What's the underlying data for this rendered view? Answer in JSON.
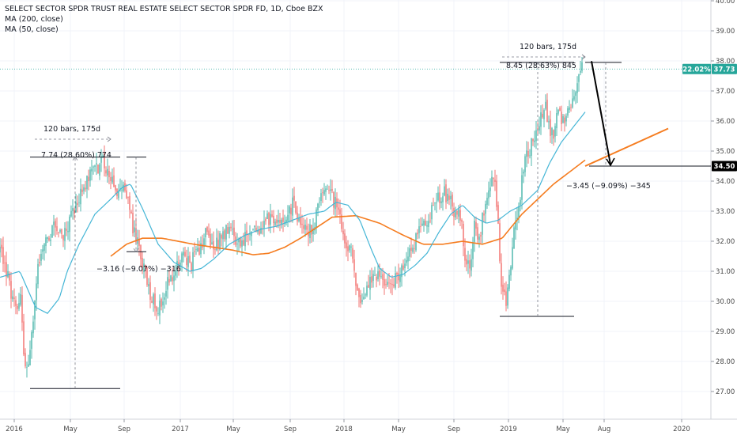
{
  "legend": {
    "title": "SELECT SECTOR SPDR TRUST REAL ESTATE SELECT SECTOR SPDR FD, 1D, Cboe BZX",
    "ma200": "MA (200, close)",
    "ma50": "MA (50, close)"
  },
  "colors": {
    "up": "#26a69a",
    "down": "#ef5350",
    "ma200": "#f57c1f",
    "ma50": "#45b6d6",
    "price_tag": "#26a69a",
    "target_tag": "#000000"
  },
  "price_tag": {
    "pct": "22.02%",
    "price": "37.73"
  },
  "target_tag": {
    "price": "34.50"
  },
  "chart_data": {
    "type": "candlestick",
    "ylim": [
      26.5,
      40.3
    ],
    "y_ticks": [
      "27.00",
      "28.00",
      "29.00",
      "30.00",
      "31.00",
      "32.00",
      "33.00",
      "34.00",
      "35.00",
      "36.00",
      "37.00",
      "38.00",
      "39.00",
      "40.00"
    ],
    "x_ticks": [
      "2016",
      "May",
      "Sep",
      "2017",
      "May",
      "Sep",
      "2018",
      "May",
      "Sep",
      "2019",
      "May",
      "Aug",
      "2020"
    ],
    "price_anchors": [
      [
        0,
        31.7
      ],
      [
        6,
        31.3
      ],
      [
        12,
        30.5
      ],
      [
        22,
        29.5
      ],
      [
        26,
        30.2
      ],
      [
        30,
        28.2
      ],
      [
        35,
        27.4
      ],
      [
        42,
        29.5
      ],
      [
        50,
        31.5
      ],
      [
        60,
        32.1
      ],
      [
        70,
        32.5
      ],
      [
        80,
        32.2
      ],
      [
        90,
        32.8
      ],
      [
        100,
        33.5
      ],
      [
        110,
        34.0
      ],
      [
        120,
        34.4
      ],
      [
        130,
        34.7
      ],
      [
        140,
        34.2
      ],
      [
        150,
        33.5
      ],
      [
        158,
        33.9
      ],
      [
        163,
        33.1
      ],
      [
        170,
        32.3
      ],
      [
        180,
        31.2
      ],
      [
        190,
        30.3
      ],
      [
        200,
        29.8
      ],
      [
        210,
        30.5
      ],
      [
        220,
        30.8
      ],
      [
        230,
        31.5
      ],
      [
        240,
        31.2
      ],
      [
        250,
        31.6
      ],
      [
        260,
        32.3
      ],
      [
        270,
        31.8
      ],
      [
        280,
        32.1
      ],
      [
        290,
        32.4
      ],
      [
        300,
        31.9
      ],
      [
        310,
        32.2
      ],
      [
        320,
        32.5
      ],
      [
        330,
        32.3
      ],
      [
        340,
        32.8
      ],
      [
        350,
        32.5
      ],
      [
        360,
        32.9
      ],
      [
        370,
        33.2
      ],
      [
        380,
        32.6
      ],
      [
        390,
        32.4
      ],
      [
        395,
        32.2
      ],
      [
        405,
        33.6
      ],
      [
        412,
        33.8
      ],
      [
        420,
        33.4
      ],
      [
        430,
        33.1
      ],
      [
        435,
        32.0
      ],
      [
        440,
        31.5
      ],
      [
        445,
        31.8
      ],
      [
        450,
        30.6
      ],
      [
        455,
        29.8
      ],
      [
        460,
        29.9
      ],
      [
        465,
        30.5
      ],
      [
        470,
        30.7
      ],
      [
        480,
        30.9
      ],
      [
        490,
        30.4
      ],
      [
        500,
        30.8
      ],
      [
        510,
        31.1
      ],
      [
        520,
        31.6
      ],
      [
        530,
        32.4
      ],
      [
        540,
        32.6
      ],
      [
        550,
        33.4
      ],
      [
        560,
        33.6
      ],
      [
        570,
        33.5
      ],
      [
        575,
        32.9
      ],
      [
        580,
        32.8
      ],
      [
        585,
        32.3
      ],
      [
        590,
        31.1
      ],
      [
        595,
        31.4
      ],
      [
        600,
        32.5
      ],
      [
        605,
        31.9
      ],
      [
        610,
        32.7
      ],
      [
        615,
        33.6
      ],
      [
        620,
        33.9
      ],
      [
        625,
        34.1
      ],
      [
        630,
        32.4
      ],
      [
        635,
        30.3
      ],
      [
        640,
        29.9
      ],
      [
        645,
        31.2
      ],
      [
        650,
        32.3
      ],
      [
        655,
        32.9
      ],
      [
        660,
        34.1
      ],
      [
        665,
        34.8
      ],
      [
        670,
        35.0
      ],
      [
        675,
        35.4
      ],
      [
        680,
        35.9
      ],
      [
        685,
        36.1
      ],
      [
        690,
        36.4
      ],
      [
        695,
        35.8
      ],
      [
        700,
        35.5
      ],
      [
        705,
        36.2
      ],
      [
        710,
        36.0
      ],
      [
        715,
        36.1
      ],
      [
        720,
        36.5
      ],
      [
        725,
        36.8
      ],
      [
        730,
        37.4
      ],
      [
        736,
        37.73
      ]
    ],
    "ma200_anchors": [
      [
        140,
        31.5
      ],
      [
        160,
        31.9
      ],
      [
        180,
        32.1
      ],
      [
        205,
        32.1
      ],
      [
        225,
        32.0
      ],
      [
        245,
        31.9
      ],
      [
        270,
        31.8
      ],
      [
        295,
        31.7
      ],
      [
        320,
        31.55
      ],
      [
        340,
        31.6
      ],
      [
        360,
        31.8
      ],
      [
        380,
        32.1
      ],
      [
        400,
        32.45
      ],
      [
        420,
        32.8
      ],
      [
        450,
        32.85
      ],
      [
        480,
        32.6
      ],
      [
        510,
        32.2
      ],
      [
        535,
        31.9
      ],
      [
        560,
        31.9
      ],
      [
        585,
        32.0
      ],
      [
        610,
        31.9
      ],
      [
        635,
        32.1
      ],
      [
        660,
        32.9
      ],
      [
        680,
        33.4
      ],
      [
        700,
        33.9
      ],
      [
        715,
        34.2
      ],
      [
        740,
        34.7
      ],
      [
        765,
        34.9
      ]
    ],
    "ma50_anchors": [
      [
        0,
        30.8
      ],
      [
        25,
        31.0
      ],
      [
        45,
        29.8
      ],
      [
        60,
        29.6
      ],
      [
        75,
        30.1
      ],
      [
        85,
        31.0
      ],
      [
        100,
        31.9
      ],
      [
        120,
        32.9
      ],
      [
        140,
        33.4
      ],
      [
        155,
        33.8
      ],
      [
        165,
        33.9
      ],
      [
        180,
        33.1
      ],
      [
        200,
        31.9
      ],
      [
        220,
        31.3
      ],
      [
        240,
        31.0
      ],
      [
        255,
        31.1
      ],
      [
        270,
        31.4
      ],
      [
        290,
        31.9
      ],
      [
        310,
        32.2
      ],
      [
        330,
        32.4
      ],
      [
        350,
        32.5
      ],
      [
        370,
        32.7
      ],
      [
        390,
        32.9
      ],
      [
        410,
        33.0
      ],
      [
        425,
        33.3
      ],
      [
        440,
        33.2
      ],
      [
        455,
        32.7
      ],
      [
        470,
        31.7
      ],
      [
        480,
        31.1
      ],
      [
        495,
        30.8
      ],
      [
        510,
        30.9
      ],
      [
        525,
        31.2
      ],
      [
        540,
        31.6
      ],
      [
        555,
        32.3
      ],
      [
        570,
        32.9
      ],
      [
        585,
        33.2
      ],
      [
        600,
        32.8
      ],
      [
        615,
        32.6
      ],
      [
        630,
        32.7
      ],
      [
        645,
        33.0
      ],
      [
        660,
        33.2
      ],
      [
        680,
        33.7
      ],
      [
        695,
        34.6
      ],
      [
        710,
        35.3
      ],
      [
        725,
        35.8
      ],
      [
        740,
        36.3
      ]
    ],
    "projection_line": {
      "from": [
        740,
        34.5
      ],
      "to": [
        845,
        35.75
      ]
    },
    "measures": [
      {
        "label_bars": "120 bars, 175d",
        "label_change": "7.74 (28.60%) 774"
      },
      {
        "label_change": "−3.16 (−9.07%) −316"
      },
      {
        "label_bars": "120 bars, 175d",
        "label_change": "8.45 (28.63%) 845"
      },
      {
        "label_change": "−3.45 (−9.09%) −345"
      }
    ]
  }
}
